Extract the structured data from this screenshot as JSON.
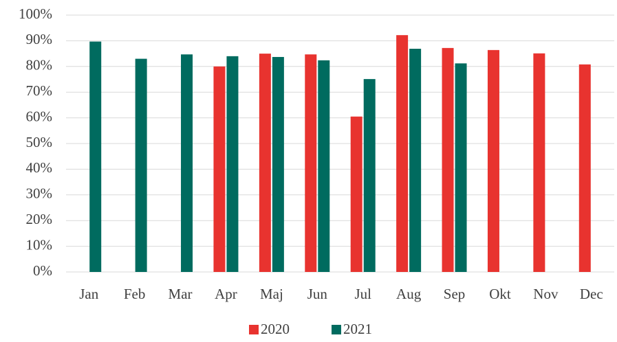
{
  "chart_data": {
    "type": "bar",
    "categories": [
      "Jan",
      "Feb",
      "Mar",
      "Apr",
      "Maj",
      "Jun",
      "Jul",
      "Aug",
      "Sep",
      "Okt",
      "Nov",
      "Dec"
    ],
    "series": [
      {
        "name": "2020",
        "color": "#e8332f",
        "values": [
          null,
          null,
          null,
          80.0,
          85.0,
          84.7,
          60.5,
          92.2,
          87.2,
          86.4,
          85.1,
          80.8
        ]
      },
      {
        "name": "2021",
        "color": "#006b5f",
        "values": [
          89.7,
          83.0,
          84.7,
          84.0,
          83.7,
          82.4,
          75.1,
          86.9,
          81.2,
          null,
          null,
          null
        ]
      }
    ],
    "ylim": [
      0,
      100
    ],
    "yticks": [
      {
        "value": 0,
        "label": "0%"
      },
      {
        "value": 10,
        "label": "10%"
      },
      {
        "value": 20,
        "label": "20%"
      },
      {
        "value": 30,
        "label": "30%"
      },
      {
        "value": 40,
        "label": "40%"
      },
      {
        "value": 50,
        "label": "50%"
      },
      {
        "value": 60,
        "label": "60%"
      },
      {
        "value": 70,
        "label": "70%"
      },
      {
        "value": 80,
        "label": "80%"
      },
      {
        "value": 90,
        "label": "90%"
      },
      {
        "value": 100,
        "label": "100%"
      }
    ],
    "grid": true,
    "legend": "bottom"
  }
}
